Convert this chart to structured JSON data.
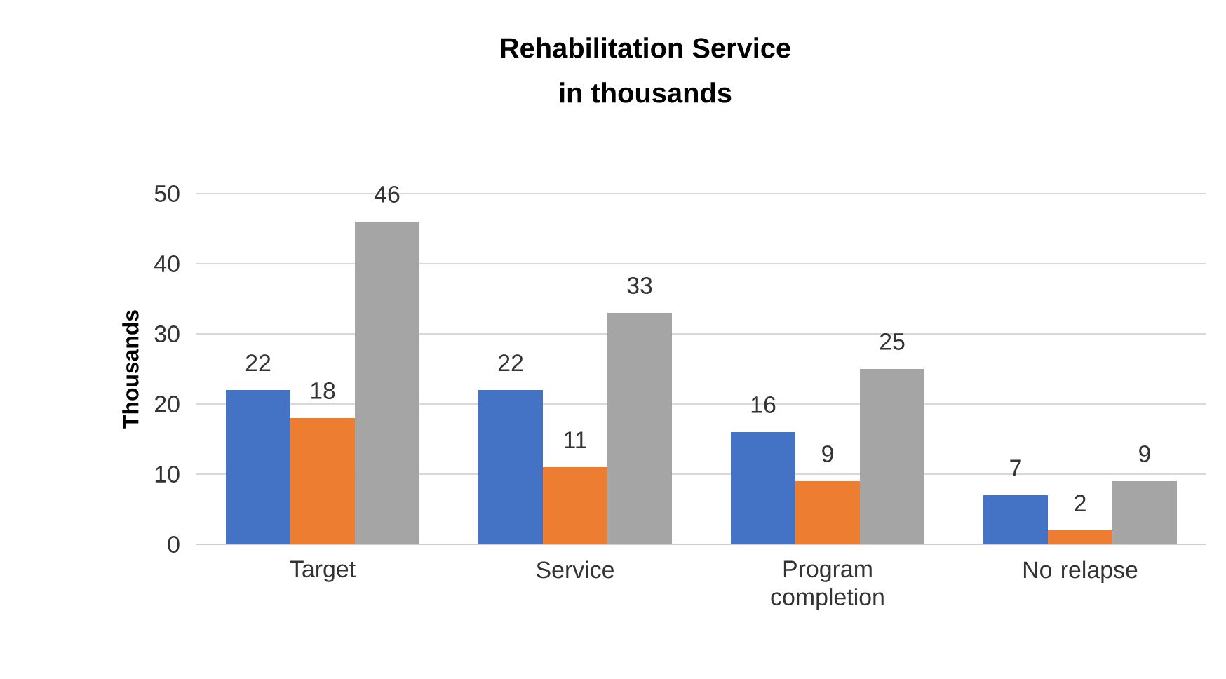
{
  "chart_data": {
    "type": "bar",
    "title": "Rehabilitation Service",
    "subtitle": "in thousands",
    "ylabel": "Thousands",
    "categories": [
      "Target",
      "Service",
      "Program completion",
      "No relapse"
    ],
    "series": [
      {
        "color": "#4472c4",
        "values": [
          22,
          22,
          16,
          7
        ]
      },
      {
        "color": "#ed7d31",
        "values": [
          18,
          11,
          9,
          2
        ]
      },
      {
        "color": "#a5a5a5",
        "values": [
          46,
          33,
          25,
          9
        ]
      }
    ],
    "ylim": [
      0,
      50
    ],
    "yticks": [
      0,
      10,
      20,
      30,
      40,
      50
    ],
    "grid": "y",
    "data_labels": true
  }
}
